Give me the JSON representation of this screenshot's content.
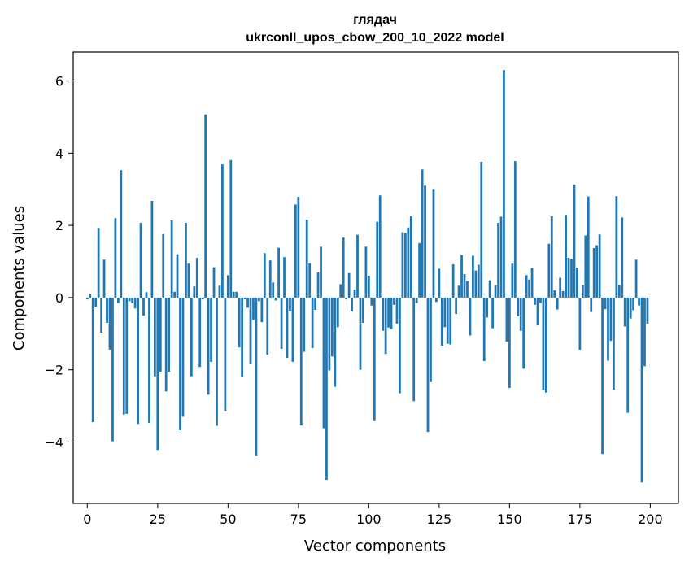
{
  "chart_data": {
    "type": "bar",
    "title": "глядач",
    "subtitle": "ukrconll_upos_cbow_200_10_2022 model",
    "xlabel": "Vector components",
    "ylabel": "Components values",
    "xlim": [
      -5,
      210
    ],
    "ylim": [
      -5.7,
      6.8
    ],
    "xticks": [
      0,
      25,
      50,
      75,
      100,
      125,
      150,
      175,
      200
    ],
    "xtick_labels": [
      "0",
      "25",
      "50",
      "75",
      "100",
      "125",
      "150",
      "175",
      "200"
    ],
    "yticks": [
      -4,
      -2,
      0,
      2,
      4,
      6
    ],
    "ytick_labels": [
      "−4",
      "−2",
      "0",
      "2",
      "4",
      "6"
    ],
    "grid": false,
    "bar_color": "#1f77b4",
    "x": [
      0,
      1,
      2,
      3,
      4,
      5,
      6,
      7,
      8,
      9,
      10,
      11,
      12,
      13,
      14,
      15,
      16,
      17,
      18,
      19,
      20,
      21,
      22,
      23,
      24,
      25,
      26,
      27,
      28,
      29,
      30,
      31,
      32,
      33,
      34,
      35,
      36,
      37,
      38,
      39,
      40,
      41,
      42,
      43,
      44,
      45,
      46,
      47,
      48,
      49,
      50,
      51,
      52,
      53,
      54,
      55,
      56,
      57,
      58,
      59,
      60,
      61,
      62,
      63,
      64,
      65,
      66,
      67,
      68,
      69,
      70,
      71,
      72,
      73,
      74,
      75,
      76,
      77,
      78,
      79,
      80,
      81,
      82,
      83,
      84,
      85,
      86,
      87,
      88,
      89,
      90,
      91,
      92,
      93,
      94,
      95,
      96,
      97,
      98,
      99,
      100,
      101,
      102,
      103,
      104,
      105,
      106,
      107,
      108,
      109,
      110,
      111,
      112,
      113,
      114,
      115,
      116,
      117,
      118,
      119,
      120,
      121,
      122,
      123,
      124,
      125,
      126,
      127,
      128,
      129,
      130,
      131,
      132,
      133,
      134,
      135,
      136,
      137,
      138,
      139,
      140,
      141,
      142,
      143,
      144,
      145,
      146,
      147,
      148,
      149,
      150,
      151,
      152,
      153,
      154,
      155,
      156,
      157,
      158,
      159,
      160,
      161,
      162,
      163,
      164,
      165,
      166,
      167,
      168,
      169,
      170,
      171,
      172,
      173,
      174,
      175,
      176,
      177,
      178,
      179,
      180,
      181,
      182,
      183,
      184,
      185,
      186,
      187,
      188,
      189,
      190,
      191,
      192,
      193,
      194,
      195,
      196,
      197,
      198,
      199
    ],
    "values": [
      -0.05,
      0.1,
      -3.45,
      -0.25,
      1.93,
      -0.97,
      1.05,
      -0.7,
      -1.44,
      -3.98,
      2.2,
      -0.15,
      3.53,
      -3.24,
      -3.22,
      -0.1,
      -0.15,
      -0.3,
      -3.5,
      2.07,
      -0.5,
      0.15,
      -3.47,
      2.68,
      -2.18,
      -4.22,
      -2.05,
      1.76,
      -2.6,
      -2.06,
      2.14,
      0.16,
      1.2,
      -3.67,
      -3.3,
      2.07,
      0.94,
      -2.18,
      0.31,
      1.1,
      -1.92,
      -0.05,
      5.07,
      -2.69,
      -1.78,
      0.84,
      -3.55,
      0.33,
      3.69,
      -3.15,
      0.62,
      3.81,
      0.16,
      0.16,
      -1.38,
      -2.2,
      -0.05,
      -0.28,
      -1.85,
      -0.62,
      -4.39,
      -0.1,
      -0.68,
      1.23,
      -1.58,
      1.03,
      0.42,
      -0.08,
      1.38,
      -1.42,
      1.12,
      -1.67,
      -0.38,
      -1.78,
      2.58,
      2.79,
      -3.54,
      -1.5,
      2.16,
      0.95,
      -1.4,
      -0.34,
      0.7,
      1.41,
      -3.62,
      -5.05,
      -2.02,
      -1.63,
      -2.47,
      -0.82,
      0.37,
      1.66,
      -0.05,
      0.68,
      -0.38,
      0.22,
      1.74,
      -2.0,
      -0.7,
      1.41,
      0.6,
      -0.22,
      -3.42,
      2.1,
      2.83,
      -0.92,
      -1.56,
      -0.83,
      -0.87,
      -0.2,
      -0.72,
      -2.65,
      1.81,
      1.79,
      1.94,
      2.25,
      -2.87,
      -0.15,
      1.51,
      3.55,
      3.1,
      -3.72,
      -2.34,
      2.99,
      -0.12,
      0.8,
      -1.33,
      -0.82,
      -1.28,
      -1.3,
      0.92,
      -0.45,
      0.33,
      1.18,
      0.65,
      0.46,
      -1.05,
      1.16,
      0.75,
      0.91,
      3.76,
      -1.76,
      -0.55,
      0.48,
      -0.85,
      0.35,
      2.07,
      2.24,
      6.3,
      -1.22,
      -2.5,
      0.94,
      3.78,
      -0.52,
      -0.92,
      -1.97,
      0.62,
      0.5,
      0.82,
      -0.2,
      -0.77,
      -0.15,
      -2.55,
      -2.63,
      1.49,
      2.25,
      0.2,
      -0.33,
      0.55,
      0.18,
      2.29,
      1.1,
      1.08,
      3.13,
      0.83,
      -1.45,
      0.35,
      1.72,
      2.8,
      -0.4,
      1.37,
      1.45,
      1.75,
      -4.33,
      -0.32,
      -1.75,
      -1.2,
      -2.55,
      2.81,
      0.35,
      2.22,
      -0.8,
      -3.19,
      -0.58,
      -0.35,
      1.05,
      -0.22,
      -5.12,
      -1.9,
      -0.72
    ]
  }
}
